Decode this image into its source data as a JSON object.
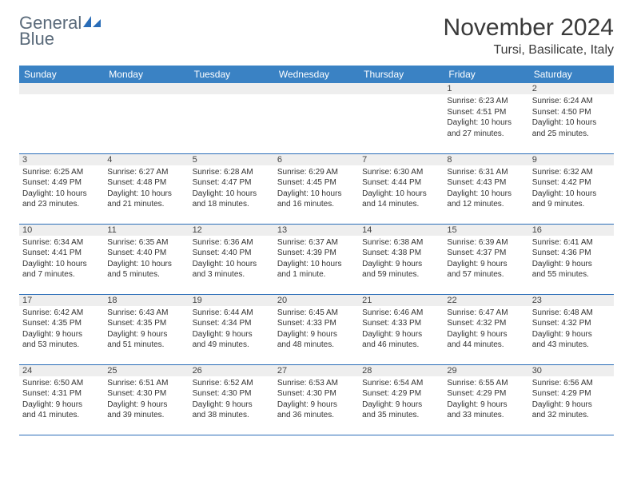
{
  "brand": {
    "word1": "General",
    "word2": "Blue"
  },
  "title": "November 2024",
  "location": "Tursi, Basilicate, Italy",
  "colors": {
    "header_bg": "#3a82c4",
    "rule": "#2a6db8",
    "daybar": "#eeeeee",
    "text": "#333333",
    "title": "#3a3a3a"
  },
  "typography": {
    "title_fontsize": 30,
    "location_fontsize": 16,
    "dayhead_fontsize": 12,
    "daynum_fontsize": 11,
    "info_fontsize": 10
  },
  "day_headers": [
    "Sunday",
    "Monday",
    "Tuesday",
    "Wednesday",
    "Thursday",
    "Friday",
    "Saturday"
  ],
  "weeks": [
    [
      null,
      null,
      null,
      null,
      null,
      {
        "n": "1",
        "sr": "Sunrise: 6:23 AM",
        "ss": "Sunset: 4:51 PM",
        "d1": "Daylight: 10 hours",
        "d2": "and 27 minutes."
      },
      {
        "n": "2",
        "sr": "Sunrise: 6:24 AM",
        "ss": "Sunset: 4:50 PM",
        "d1": "Daylight: 10 hours",
        "d2": "and 25 minutes."
      }
    ],
    [
      {
        "n": "3",
        "sr": "Sunrise: 6:25 AM",
        "ss": "Sunset: 4:49 PM",
        "d1": "Daylight: 10 hours",
        "d2": "and 23 minutes."
      },
      {
        "n": "4",
        "sr": "Sunrise: 6:27 AM",
        "ss": "Sunset: 4:48 PM",
        "d1": "Daylight: 10 hours",
        "d2": "and 21 minutes."
      },
      {
        "n": "5",
        "sr": "Sunrise: 6:28 AM",
        "ss": "Sunset: 4:47 PM",
        "d1": "Daylight: 10 hours",
        "d2": "and 18 minutes."
      },
      {
        "n": "6",
        "sr": "Sunrise: 6:29 AM",
        "ss": "Sunset: 4:45 PM",
        "d1": "Daylight: 10 hours",
        "d2": "and 16 minutes."
      },
      {
        "n": "7",
        "sr": "Sunrise: 6:30 AM",
        "ss": "Sunset: 4:44 PM",
        "d1": "Daylight: 10 hours",
        "d2": "and 14 minutes."
      },
      {
        "n": "8",
        "sr": "Sunrise: 6:31 AM",
        "ss": "Sunset: 4:43 PM",
        "d1": "Daylight: 10 hours",
        "d2": "and 12 minutes."
      },
      {
        "n": "9",
        "sr": "Sunrise: 6:32 AM",
        "ss": "Sunset: 4:42 PM",
        "d1": "Daylight: 10 hours",
        "d2": "and 9 minutes."
      }
    ],
    [
      {
        "n": "10",
        "sr": "Sunrise: 6:34 AM",
        "ss": "Sunset: 4:41 PM",
        "d1": "Daylight: 10 hours",
        "d2": "and 7 minutes."
      },
      {
        "n": "11",
        "sr": "Sunrise: 6:35 AM",
        "ss": "Sunset: 4:40 PM",
        "d1": "Daylight: 10 hours",
        "d2": "and 5 minutes."
      },
      {
        "n": "12",
        "sr": "Sunrise: 6:36 AM",
        "ss": "Sunset: 4:40 PM",
        "d1": "Daylight: 10 hours",
        "d2": "and 3 minutes."
      },
      {
        "n": "13",
        "sr": "Sunrise: 6:37 AM",
        "ss": "Sunset: 4:39 PM",
        "d1": "Daylight: 10 hours",
        "d2": "and 1 minute."
      },
      {
        "n": "14",
        "sr": "Sunrise: 6:38 AM",
        "ss": "Sunset: 4:38 PM",
        "d1": "Daylight: 9 hours",
        "d2": "and 59 minutes."
      },
      {
        "n": "15",
        "sr": "Sunrise: 6:39 AM",
        "ss": "Sunset: 4:37 PM",
        "d1": "Daylight: 9 hours",
        "d2": "and 57 minutes."
      },
      {
        "n": "16",
        "sr": "Sunrise: 6:41 AM",
        "ss": "Sunset: 4:36 PM",
        "d1": "Daylight: 9 hours",
        "d2": "and 55 minutes."
      }
    ],
    [
      {
        "n": "17",
        "sr": "Sunrise: 6:42 AM",
        "ss": "Sunset: 4:35 PM",
        "d1": "Daylight: 9 hours",
        "d2": "and 53 minutes."
      },
      {
        "n": "18",
        "sr": "Sunrise: 6:43 AM",
        "ss": "Sunset: 4:35 PM",
        "d1": "Daylight: 9 hours",
        "d2": "and 51 minutes."
      },
      {
        "n": "19",
        "sr": "Sunrise: 6:44 AM",
        "ss": "Sunset: 4:34 PM",
        "d1": "Daylight: 9 hours",
        "d2": "and 49 minutes."
      },
      {
        "n": "20",
        "sr": "Sunrise: 6:45 AM",
        "ss": "Sunset: 4:33 PM",
        "d1": "Daylight: 9 hours",
        "d2": "and 48 minutes."
      },
      {
        "n": "21",
        "sr": "Sunrise: 6:46 AM",
        "ss": "Sunset: 4:33 PM",
        "d1": "Daylight: 9 hours",
        "d2": "and 46 minutes."
      },
      {
        "n": "22",
        "sr": "Sunrise: 6:47 AM",
        "ss": "Sunset: 4:32 PM",
        "d1": "Daylight: 9 hours",
        "d2": "and 44 minutes."
      },
      {
        "n": "23",
        "sr": "Sunrise: 6:48 AM",
        "ss": "Sunset: 4:32 PM",
        "d1": "Daylight: 9 hours",
        "d2": "and 43 minutes."
      }
    ],
    [
      {
        "n": "24",
        "sr": "Sunrise: 6:50 AM",
        "ss": "Sunset: 4:31 PM",
        "d1": "Daylight: 9 hours",
        "d2": "and 41 minutes."
      },
      {
        "n": "25",
        "sr": "Sunrise: 6:51 AM",
        "ss": "Sunset: 4:30 PM",
        "d1": "Daylight: 9 hours",
        "d2": "and 39 minutes."
      },
      {
        "n": "26",
        "sr": "Sunrise: 6:52 AM",
        "ss": "Sunset: 4:30 PM",
        "d1": "Daylight: 9 hours",
        "d2": "and 38 minutes."
      },
      {
        "n": "27",
        "sr": "Sunrise: 6:53 AM",
        "ss": "Sunset: 4:30 PM",
        "d1": "Daylight: 9 hours",
        "d2": "and 36 minutes."
      },
      {
        "n": "28",
        "sr": "Sunrise: 6:54 AM",
        "ss": "Sunset: 4:29 PM",
        "d1": "Daylight: 9 hours",
        "d2": "and 35 minutes."
      },
      {
        "n": "29",
        "sr": "Sunrise: 6:55 AM",
        "ss": "Sunset: 4:29 PM",
        "d1": "Daylight: 9 hours",
        "d2": "and 33 minutes."
      },
      {
        "n": "30",
        "sr": "Sunrise: 6:56 AM",
        "ss": "Sunset: 4:29 PM",
        "d1": "Daylight: 9 hours",
        "d2": "and 32 minutes."
      }
    ]
  ]
}
